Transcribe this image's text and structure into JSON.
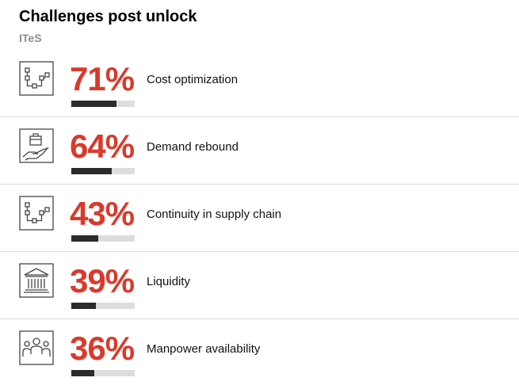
{
  "header": {
    "title": "Challenges post unlock",
    "subtitle": "ITeS"
  },
  "colors": {
    "accent": "#d93a2b",
    "bar_fill": "#2b2b2b",
    "bar_track": "#dddddd"
  },
  "chart_data": {
    "type": "bar",
    "title": "Challenges post unlock",
    "subtitle": "ITeS",
    "categories": [
      "Cost optimization",
      "Demand rebound",
      "Continuity in supply chain",
      "Liquidity",
      "Manpower availability"
    ],
    "values": [
      71,
      64,
      43,
      39,
      36
    ],
    "ylim": [
      0,
      100
    ]
  },
  "rows": [
    {
      "pct_text": "71%",
      "label": "Cost optimization",
      "icon": "flowchart-icon"
    },
    {
      "pct_text": "64%",
      "label": "Demand rebound",
      "icon": "hand-briefcase-icon"
    },
    {
      "pct_text": "43%",
      "label": "Continuity in supply chain",
      "icon": "flowchart-icon"
    },
    {
      "pct_text": "39%",
      "label": "Liquidity",
      "icon": "bank-icon"
    },
    {
      "pct_text": "36%",
      "label": "Manpower availability",
      "icon": "people-icon"
    }
  ]
}
